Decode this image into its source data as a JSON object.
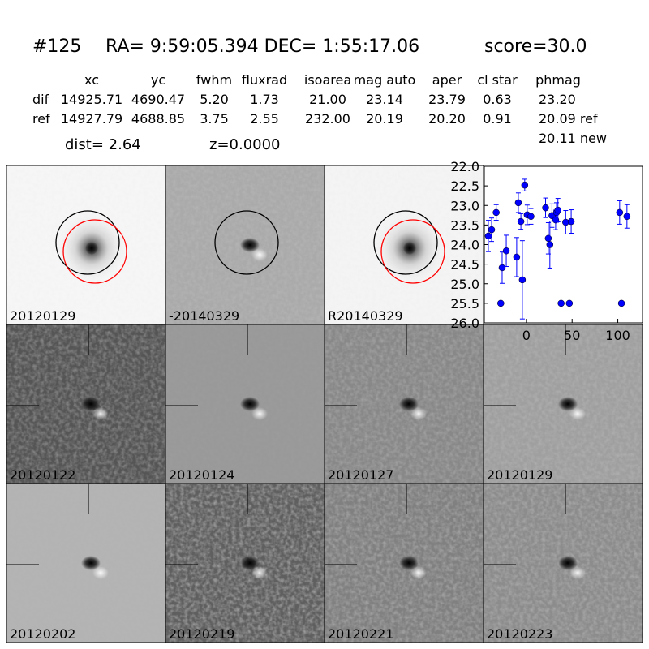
{
  "header": {
    "id": "#125",
    "coords": "RA= 9:59:05.394 DEC= 1:55:17.06",
    "score": "score=30.0"
  },
  "table": {
    "columns": [
      "xc",
      "yc",
      "fwhm",
      "fluxrad",
      "isoarea",
      "mag auto",
      "aper",
      "cl star",
      "phmag"
    ],
    "rows": [
      [
        "dif",
        "14925.71",
        "4690.47",
        "5.20",
        "1.73",
        "21.00",
        "23.14",
        "23.79",
        "0.63",
        "23.20"
      ],
      [
        "ref",
        "14927.79",
        "4688.85",
        "3.75",
        "2.55",
        "232.00",
        "20.19",
        "20.20",
        "0.91",
        "20.09 ref"
      ]
    ],
    "extra": "20.11 new"
  },
  "dist": "dist=  2.64",
  "z": "z=0.0000",
  "panels": [
    {
      "label": "20120129"
    },
    {
      "label": "-20140329"
    },
    {
      "label": "R20140329"
    },
    {
      "label": "20120122"
    },
    {
      "label": "20120124"
    },
    {
      "label": "20120127"
    },
    {
      "label": "20120129",
      "color": "#ff0000"
    },
    {
      "label": "20120202"
    },
    {
      "label": "20120219"
    },
    {
      "label": "20120221"
    },
    {
      "label": "20120223"
    }
  ],
  "chart_data": {
    "type": "scatter",
    "xlim": [
      -46,
      127
    ],
    "xticks": [
      0,
      50,
      100
    ],
    "ylim": [
      26.0,
      22.0
    ],
    "yticks": [
      {
        "value": 22.0,
        "label": "22.0"
      },
      {
        "value": 22.5,
        "label": "22.5"
      },
      {
        "value": 23.0,
        "label": "23.0"
      },
      {
        "value": 23.5,
        "label": "23.5"
      },
      {
        "value": 24.0,
        "label": "24.0"
      },
      {
        "value": 24.5,
        "label": "24.5"
      },
      {
        "value": 25.0,
        "label": "25.0"
      },
      {
        "value": 25.5,
        "label": "25.5"
      },
      {
        "value": 26.0,
        "label": "26.0"
      }
    ],
    "series": [
      {
        "color": "#0000ff",
        "x": [
          -41.6,
          -38,
          -33,
          -28,
          -26.5,
          -22,
          -10.6,
          -8.8,
          -6,
          -4.4,
          -1.8,
          0.9,
          5,
          21,
          24,
          25.7,
          28,
          32,
          33,
          34.5,
          38,
          43,
          47,
          49,
          102,
          104,
          110
        ],
        "values": [
          23.78,
          23.62,
          23.18,
          25.5,
          24.59,
          24.16,
          24.32,
          22.93,
          23.41,
          24.9,
          22.48,
          23.24,
          23.28,
          23.06,
          23.84,
          24.0,
          23.26,
          23.37,
          23.18,
          23.12,
          25.5,
          23.43,
          25.5,
          23.41,
          23.18,
          25.5,
          23.28
        ],
        "errors": [
          0.4,
          0.3,
          0.2,
          0.05,
          0.4,
          0.4,
          0.5,
          0.25,
          0.2,
          1.0,
          0.15,
          0.25,
          0.2,
          0.25,
          0.4,
          0.6,
          0.3,
          0.25,
          0.25,
          0.3,
          0.05,
          0.3,
          0.05,
          0.3,
          0.3,
          0.05,
          0.3
        ]
      }
    ]
  }
}
